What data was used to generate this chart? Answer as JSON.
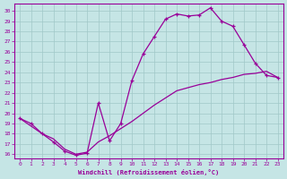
{
  "xlabel": "Windchill (Refroidissement éolien,°C)",
  "line_color": "#990099",
  "bg_color": "#c5e5e5",
  "grid_color": "#a0c8c8",
  "xlim_min": -0.5,
  "xlim_max": 23.5,
  "ylim_min": 15.6,
  "ylim_max": 30.7,
  "xticks": [
    0,
    1,
    2,
    3,
    4,
    5,
    6,
    7,
    8,
    9,
    10,
    11,
    12,
    13,
    14,
    15,
    16,
    17,
    18,
    19,
    20,
    21,
    22,
    23
  ],
  "yticks": [
    16,
    17,
    18,
    19,
    20,
    21,
    22,
    23,
    24,
    25,
    26,
    27,
    28,
    29,
    30
  ],
  "upper_x": [
    0,
    1,
    2,
    3,
    4,
    5,
    6,
    7,
    8,
    9,
    10,
    11,
    12,
    13,
    14,
    15,
    16,
    17,
    18,
    19,
    20,
    21,
    22,
    23
  ],
  "upper_y": [
    19.5,
    19.0,
    18.0,
    17.2,
    16.3,
    15.9,
    16.1,
    21.0,
    17.3,
    19.0,
    23.2,
    25.8,
    27.5,
    29.2,
    29.7,
    29.5,
    29.6,
    30.3,
    29.0,
    28.5,
    26.7,
    24.9,
    23.7,
    23.5
  ],
  "lower_x": [
    0,
    2,
    3,
    4,
    5,
    6,
    7,
    8,
    9,
    10,
    11,
    12,
    13,
    14,
    15,
    16,
    17,
    18,
    19,
    20,
    21,
    22,
    23
  ],
  "lower_y": [
    19.5,
    18.0,
    17.5,
    16.5,
    16.0,
    16.2,
    17.2,
    17.8,
    18.5,
    19.2,
    20.0,
    20.8,
    21.5,
    22.2,
    22.5,
    22.8,
    23.0,
    23.3,
    23.5,
    23.8,
    23.9,
    24.1,
    23.5
  ]
}
